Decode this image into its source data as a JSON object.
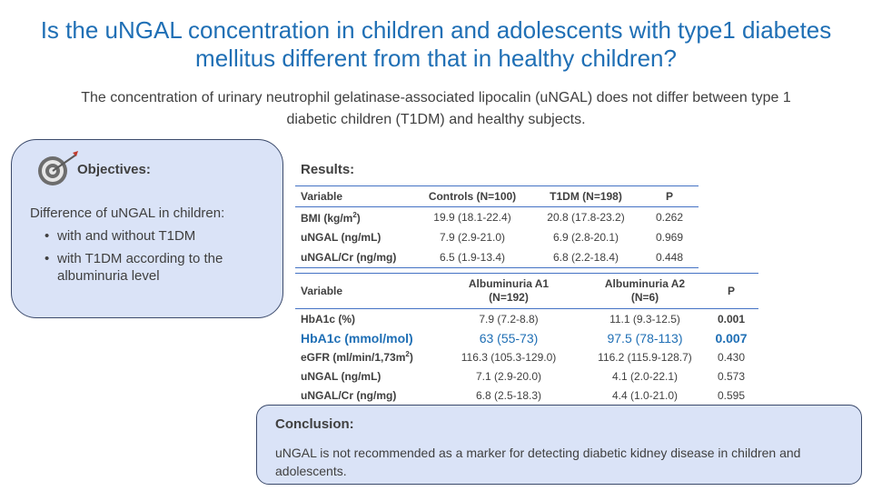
{
  "title": "Is the uNGAL concentration in children and adolescents with type1 diabetes mellitus different from that in healthy children?",
  "subtitle": "The concentration of urinary neutrophil gelatinase-associated lipocalin (uNGAL) does not differ between type 1 diabetic children (T1DM) and healthy subjects.",
  "objectives": {
    "heading": "Objectives:",
    "intro": "Difference of uNGAL in children:",
    "items": [
      "with and without T1DM",
      "with T1DM according to the albuminuria level"
    ],
    "icon": "target-icon"
  },
  "results": {
    "heading": "Results:",
    "table1": {
      "headers": [
        "Variable",
        "Controls (N=100)",
        "T1DM (N=198)",
        "P"
      ],
      "rows": [
        {
          "variable": "BMI (kg/m",
          "sup": "2",
          "variable_end": ")",
          "controls": "19.9 (18.1-22.4)",
          "t1dm": "20.8 (17.8-23.2)",
          "p": "0.262"
        },
        {
          "variable": "uNGAL (ng/mL)",
          "controls": "7.9 (2.9-21.0)",
          "t1dm": "6.9 (2.8-20.1)",
          "p": "0.969"
        },
        {
          "variable": "uNGAL/Cr (ng/mg)",
          "controls": "6.5 (1.9-13.4)",
          "t1dm": "6.8 (2.2-18.4)",
          "p": "0.448"
        }
      ]
    },
    "table2": {
      "headers": {
        "variable": "Variable",
        "a1_line1": "Albuminuria A1",
        "a1_line2": "(N=192)",
        "a2_line1": "Albuminuria A2",
        "a2_line2": "(N=6)",
        "p": "P"
      },
      "rows": [
        {
          "variable": "HbA1c (%)",
          "a1": "7.9 (7.2-8.8)",
          "a2": "11.1 (9.3-12.5)",
          "p": "0.001"
        },
        {
          "variable": "HbA1c (mmol/mol)",
          "a1": "63 (55-73)",
          "a2": "97.5 (78-113)",
          "p": "0.007"
        },
        {
          "variable": "eGFR (ml/min/1,73m",
          "sup": "2",
          "variable_end": ")",
          "a1": "116.3 (105.3-129.0)",
          "a2": "116.2 (115.9-128.7)",
          "p": "0.430"
        },
        {
          "variable": "uNGAL (ng/mL)",
          "a1": "7.1 (2.9-20.0)",
          "a2": "4.1 (2.0-22.1)",
          "p": "0.573"
        },
        {
          "variable": "uNGAL/Cr (ng/mg)",
          "a1": "6.8 (2.5-18.3)",
          "a2": "4.4 (1.0-21.0)",
          "p": "0.595"
        }
      ]
    }
  },
  "conclusion": {
    "heading": "Conclusion:",
    "text": "uNGAL is not recommended as a marker for detecting diabetic kidney disease in children and adolescents."
  },
  "colors": {
    "accent": "#1f6fb5",
    "box_fill": "#dae3f7",
    "table_rule": "#4472c4"
  }
}
